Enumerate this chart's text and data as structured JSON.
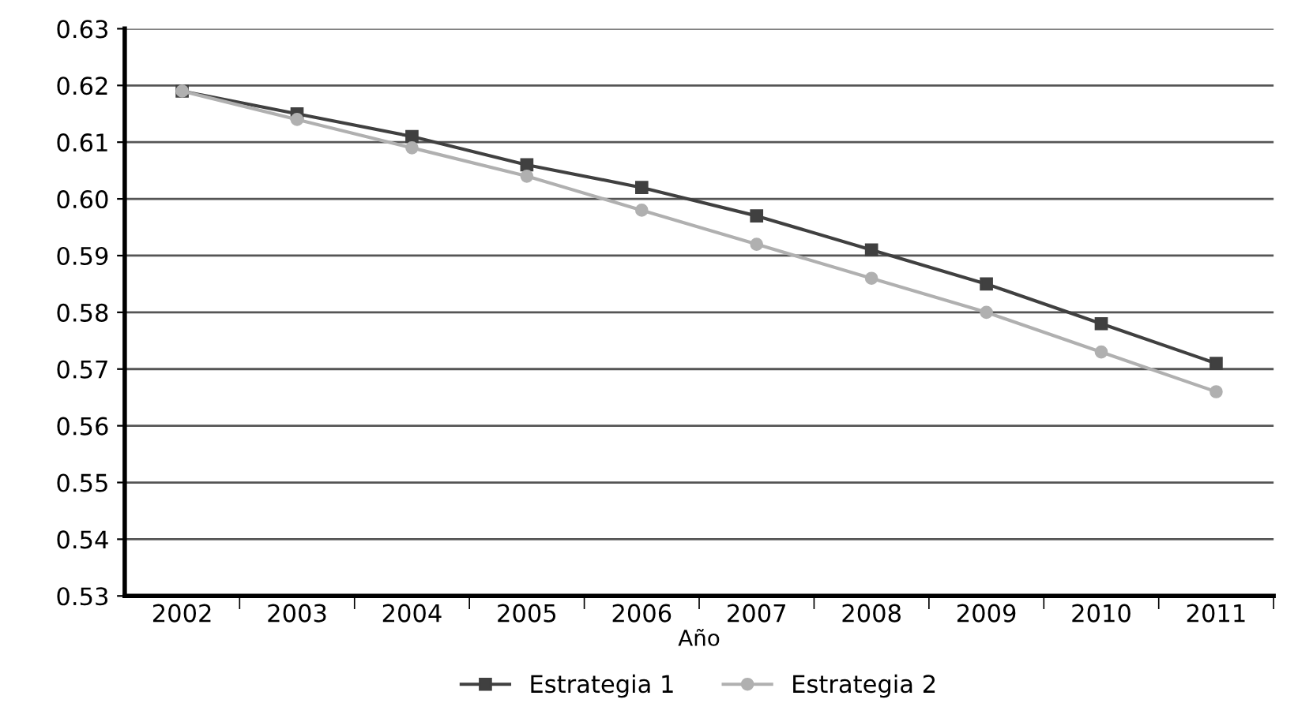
{
  "chart_data": {
    "type": "line",
    "xlabel": "Año",
    "categories": [
      "2002",
      "2003",
      "2004",
      "2005",
      "2006",
      "2007",
      "2008",
      "2009",
      "2010",
      "2011"
    ],
    "series": [
      {
        "name": "Estrategia 1",
        "color": "#404040",
        "marker": "square",
        "values": [
          0.619,
          0.615,
          0.611,
          0.606,
          0.602,
          0.597,
          0.591,
          0.585,
          0.578,
          0.571
        ]
      },
      {
        "name": "Estrategia 2",
        "color": "#b0b0b0",
        "marker": "circle",
        "values": [
          0.619,
          0.614,
          0.609,
          0.604,
          0.598,
          0.592,
          0.586,
          0.58,
          0.573,
          0.566
        ]
      }
    ],
    "ylim": [
      0.53,
      0.63
    ],
    "yticks": [
      0.53,
      0.54,
      0.55,
      0.56,
      0.57,
      0.58,
      0.59,
      {
        "value": 0.6,
        "label": "0.60"
      },
      0.61,
      0.62,
      0.63
    ],
    "grid": "y",
    "legend": "bottom",
    "line_style": "solid"
  }
}
